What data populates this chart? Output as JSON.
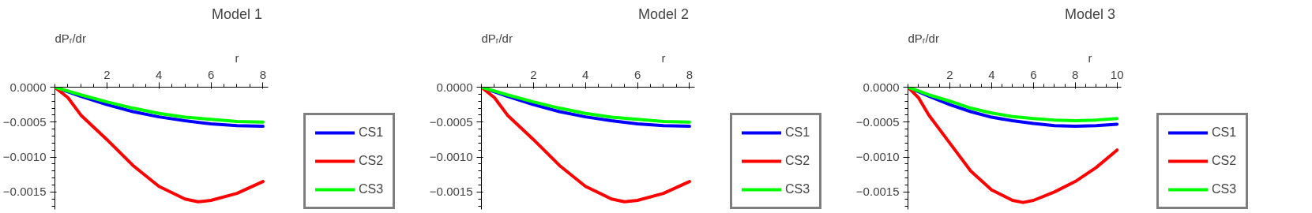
{
  "chart_data": [
    {
      "type": "line",
      "title": "Model 1",
      "xlabel": "r",
      "ylabel": "dPᵣ/dr",
      "xlim": [
        0,
        8.2
      ],
      "ylim": [
        -0.00175,
        0
      ],
      "xticks": [
        2,
        4,
        6,
        8
      ],
      "yticks": [
        {
          "value": 0,
          "label": "0.0000"
        },
        {
          "value": -0.0005,
          "label": "−0.0005"
        },
        {
          "value": -0.001,
          "label": "−0.0010"
        },
        {
          "value": -0.0015,
          "label": "−0.0015"
        }
      ],
      "grid": false,
      "legend": "right",
      "series": [
        {
          "name": "CS1",
          "color": "#0000ff",
          "x": [
            0,
            1,
            2,
            3,
            4,
            5,
            6,
            7,
            8
          ],
          "values": [
            0,
            -0.00013,
            -0.00025,
            -0.00035,
            -0.000425,
            -0.00048,
            -0.000525,
            -0.00055,
            -0.00056
          ]
        },
        {
          "name": "CS2",
          "color": "#ff0000",
          "x": [
            0,
            0.5,
            1,
            2,
            3,
            4,
            5,
            5.5,
            6,
            7,
            8
          ],
          "values": [
            0,
            -0.00015,
            -0.0004,
            -0.00075,
            -0.00112,
            -0.00142,
            -0.0016,
            -0.00164,
            -0.00162,
            -0.00152,
            -0.00135
          ]
        },
        {
          "name": "CS3",
          "color": "#00ff00",
          "x": [
            0,
            1,
            2,
            3,
            4,
            5,
            6,
            7,
            8
          ],
          "values": [
            0,
            -0.00011,
            -0.00021,
            -0.0003,
            -0.000375,
            -0.00043,
            -0.00046,
            -0.00049,
            -0.0005
          ]
        }
      ]
    },
    {
      "type": "line",
      "title": "Model 2",
      "xlabel": "r",
      "ylabel": "dPᵣ/dr",
      "xlim": [
        0,
        8.2
      ],
      "ylim": [
        -0.00175,
        0
      ],
      "xticks": [
        2,
        4,
        6,
        8
      ],
      "yticks": [
        {
          "value": 0,
          "label": "0.0000"
        },
        {
          "value": -0.0005,
          "label": "−0.0005"
        },
        {
          "value": -0.001,
          "label": "−0.0010"
        },
        {
          "value": -0.0015,
          "label": "−0.0015"
        }
      ],
      "grid": false,
      "legend": "right",
      "series": [
        {
          "name": "CS1",
          "color": "#0000ff",
          "x": [
            0,
            1,
            2,
            3,
            4,
            5,
            6,
            7,
            8
          ],
          "values": [
            0,
            -0.00013,
            -0.00025,
            -0.00035,
            -0.000425,
            -0.00048,
            -0.000525,
            -0.00055,
            -0.00056
          ]
        },
        {
          "name": "CS2",
          "color": "#ff0000",
          "x": [
            0,
            0.5,
            1,
            2,
            3,
            4,
            5,
            5.5,
            6,
            7,
            8
          ],
          "values": [
            0,
            -0.00015,
            -0.0004,
            -0.00075,
            -0.00112,
            -0.00142,
            -0.0016,
            -0.00164,
            -0.00162,
            -0.00152,
            -0.00135
          ]
        },
        {
          "name": "CS3",
          "color": "#00ff00",
          "x": [
            0,
            1,
            2,
            3,
            4,
            5,
            6,
            7,
            8
          ],
          "values": [
            0,
            -0.00011,
            -0.00021,
            -0.0003,
            -0.000375,
            -0.00043,
            -0.00046,
            -0.00049,
            -0.0005
          ]
        }
      ]
    },
    {
      "type": "line",
      "title": "Model 3",
      "xlabel": "r",
      "ylabel": "dPᵣ/dr",
      "xlim": [
        0,
        10.2
      ],
      "ylim": [
        -0.00175,
        0
      ],
      "xticks": [
        2,
        4,
        6,
        8,
        10
      ],
      "yticks": [
        {
          "value": 0,
          "label": "0.0000"
        },
        {
          "value": -0.0005,
          "label": "−0.0005"
        },
        {
          "value": -0.001,
          "label": "−0.0010"
        },
        {
          "value": -0.0015,
          "label": "−0.0015"
        }
      ],
      "grid": false,
      "legend": "right",
      "series": [
        {
          "name": "CS1",
          "color": "#0000ff",
          "x": [
            0,
            1,
            2,
            3,
            4,
            5,
            6,
            7,
            8,
            9,
            10
          ],
          "values": [
            0,
            -0.00013,
            -0.00025,
            -0.00035,
            -0.00043,
            -0.00048,
            -0.00052,
            -0.00055,
            -0.00056,
            -0.00055,
            -0.00053
          ]
        },
        {
          "name": "CS2",
          "color": "#ff0000",
          "x": [
            0,
            0.5,
            1,
            2,
            3,
            4,
            5,
            5.5,
            6,
            7,
            8,
            9,
            10
          ],
          "values": [
            0,
            -0.00015,
            -0.0004,
            -0.0008,
            -0.0012,
            -0.00147,
            -0.00162,
            -0.00165,
            -0.00162,
            -0.0015,
            -0.00135,
            -0.00115,
            -0.0009
          ]
        },
        {
          "name": "CS3",
          "color": "#00ff00",
          "x": [
            0,
            1,
            2,
            3,
            4,
            5,
            6,
            7,
            8,
            9,
            10
          ],
          "values": [
            0,
            -0.00011,
            -0.0002,
            -0.0003,
            -0.00037,
            -0.00042,
            -0.00045,
            -0.00047,
            -0.00048,
            -0.00047,
            -0.00045
          ]
        }
      ]
    }
  ]
}
